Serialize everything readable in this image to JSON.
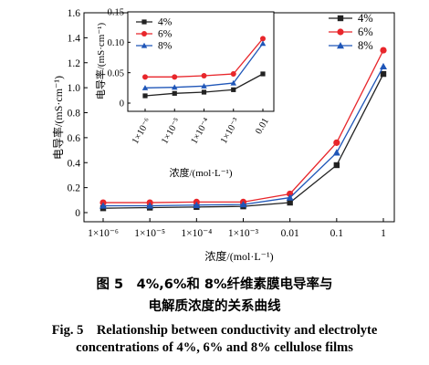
{
  "chart_data": [
    {
      "type": "line",
      "categories": [
        "1×10⁻⁶",
        "1×10⁻⁵",
        "1×10⁻⁴",
        "1×10⁻³",
        "0.01",
        "0.1",
        "1"
      ],
      "xlabel": "浓度/(mol·L⁻¹)",
      "ylabel": "电导率/(mS·cm⁻¹)",
      "ylim": [
        0,
        1.6
      ],
      "yticks": [
        "0",
        "0.2",
        "0.4",
        "0.6",
        "0.8",
        "1.0",
        "1.2",
        "1.4",
        "1.6"
      ],
      "legend": "top-right",
      "series": [
        {
          "name": "4%",
          "color": "#222222",
          "marker": "square",
          "values": [
            0.035,
            0.04,
            0.045,
            0.05,
            0.08,
            0.38,
            1.11
          ]
        },
        {
          "name": "6%",
          "color": "#e8262b",
          "marker": "circle",
          "values": [
            0.08,
            0.08,
            0.085,
            0.085,
            0.15,
            0.56,
            1.3
          ]
        },
        {
          "name": "8%",
          "color": "#1f56b8",
          "marker": "triangle",
          "values": [
            0.055,
            0.055,
            0.06,
            0.065,
            0.12,
            0.48,
            1.17
          ]
        }
      ]
    },
    {
      "type": "line",
      "categories": [
        "1×10⁻⁶",
        "1×10⁻⁵",
        "1×10⁻⁴",
        "1×10⁻³",
        "0.01"
      ],
      "xlabel": "浓度/(mol·L⁻¹)",
      "ylabel": "电导率/(mS·cm⁻¹)",
      "ylim": [
        0,
        0.15
      ],
      "yticks": [
        "0",
        "0.05",
        "0.10",
        "0.15"
      ],
      "legend": "top-left",
      "series": [
        {
          "name": "4%",
          "color": "#222222",
          "marker": "square",
          "values": [
            0.012,
            0.016,
            0.018,
            0.022,
            0.048
          ]
        },
        {
          "name": "6%",
          "color": "#e8262b",
          "marker": "circle",
          "values": [
            0.043,
            0.043,
            0.045,
            0.048,
            0.106
          ]
        },
        {
          "name": "8%",
          "color": "#1f56b8",
          "marker": "triangle",
          "values": [
            0.025,
            0.026,
            0.028,
            0.033,
            0.098
          ]
        }
      ]
    }
  ],
  "caption": {
    "cn_line1": "图 5　4%,6%和 8%纤维素膜电导率与",
    "cn_line2": "电解质浓度的关系曲线",
    "en_line1": "Fig. 5　Relationship between conductivity and electrolyte",
    "en_line2": "concentrations of 4%, 6% and 8% cellulose films"
  }
}
